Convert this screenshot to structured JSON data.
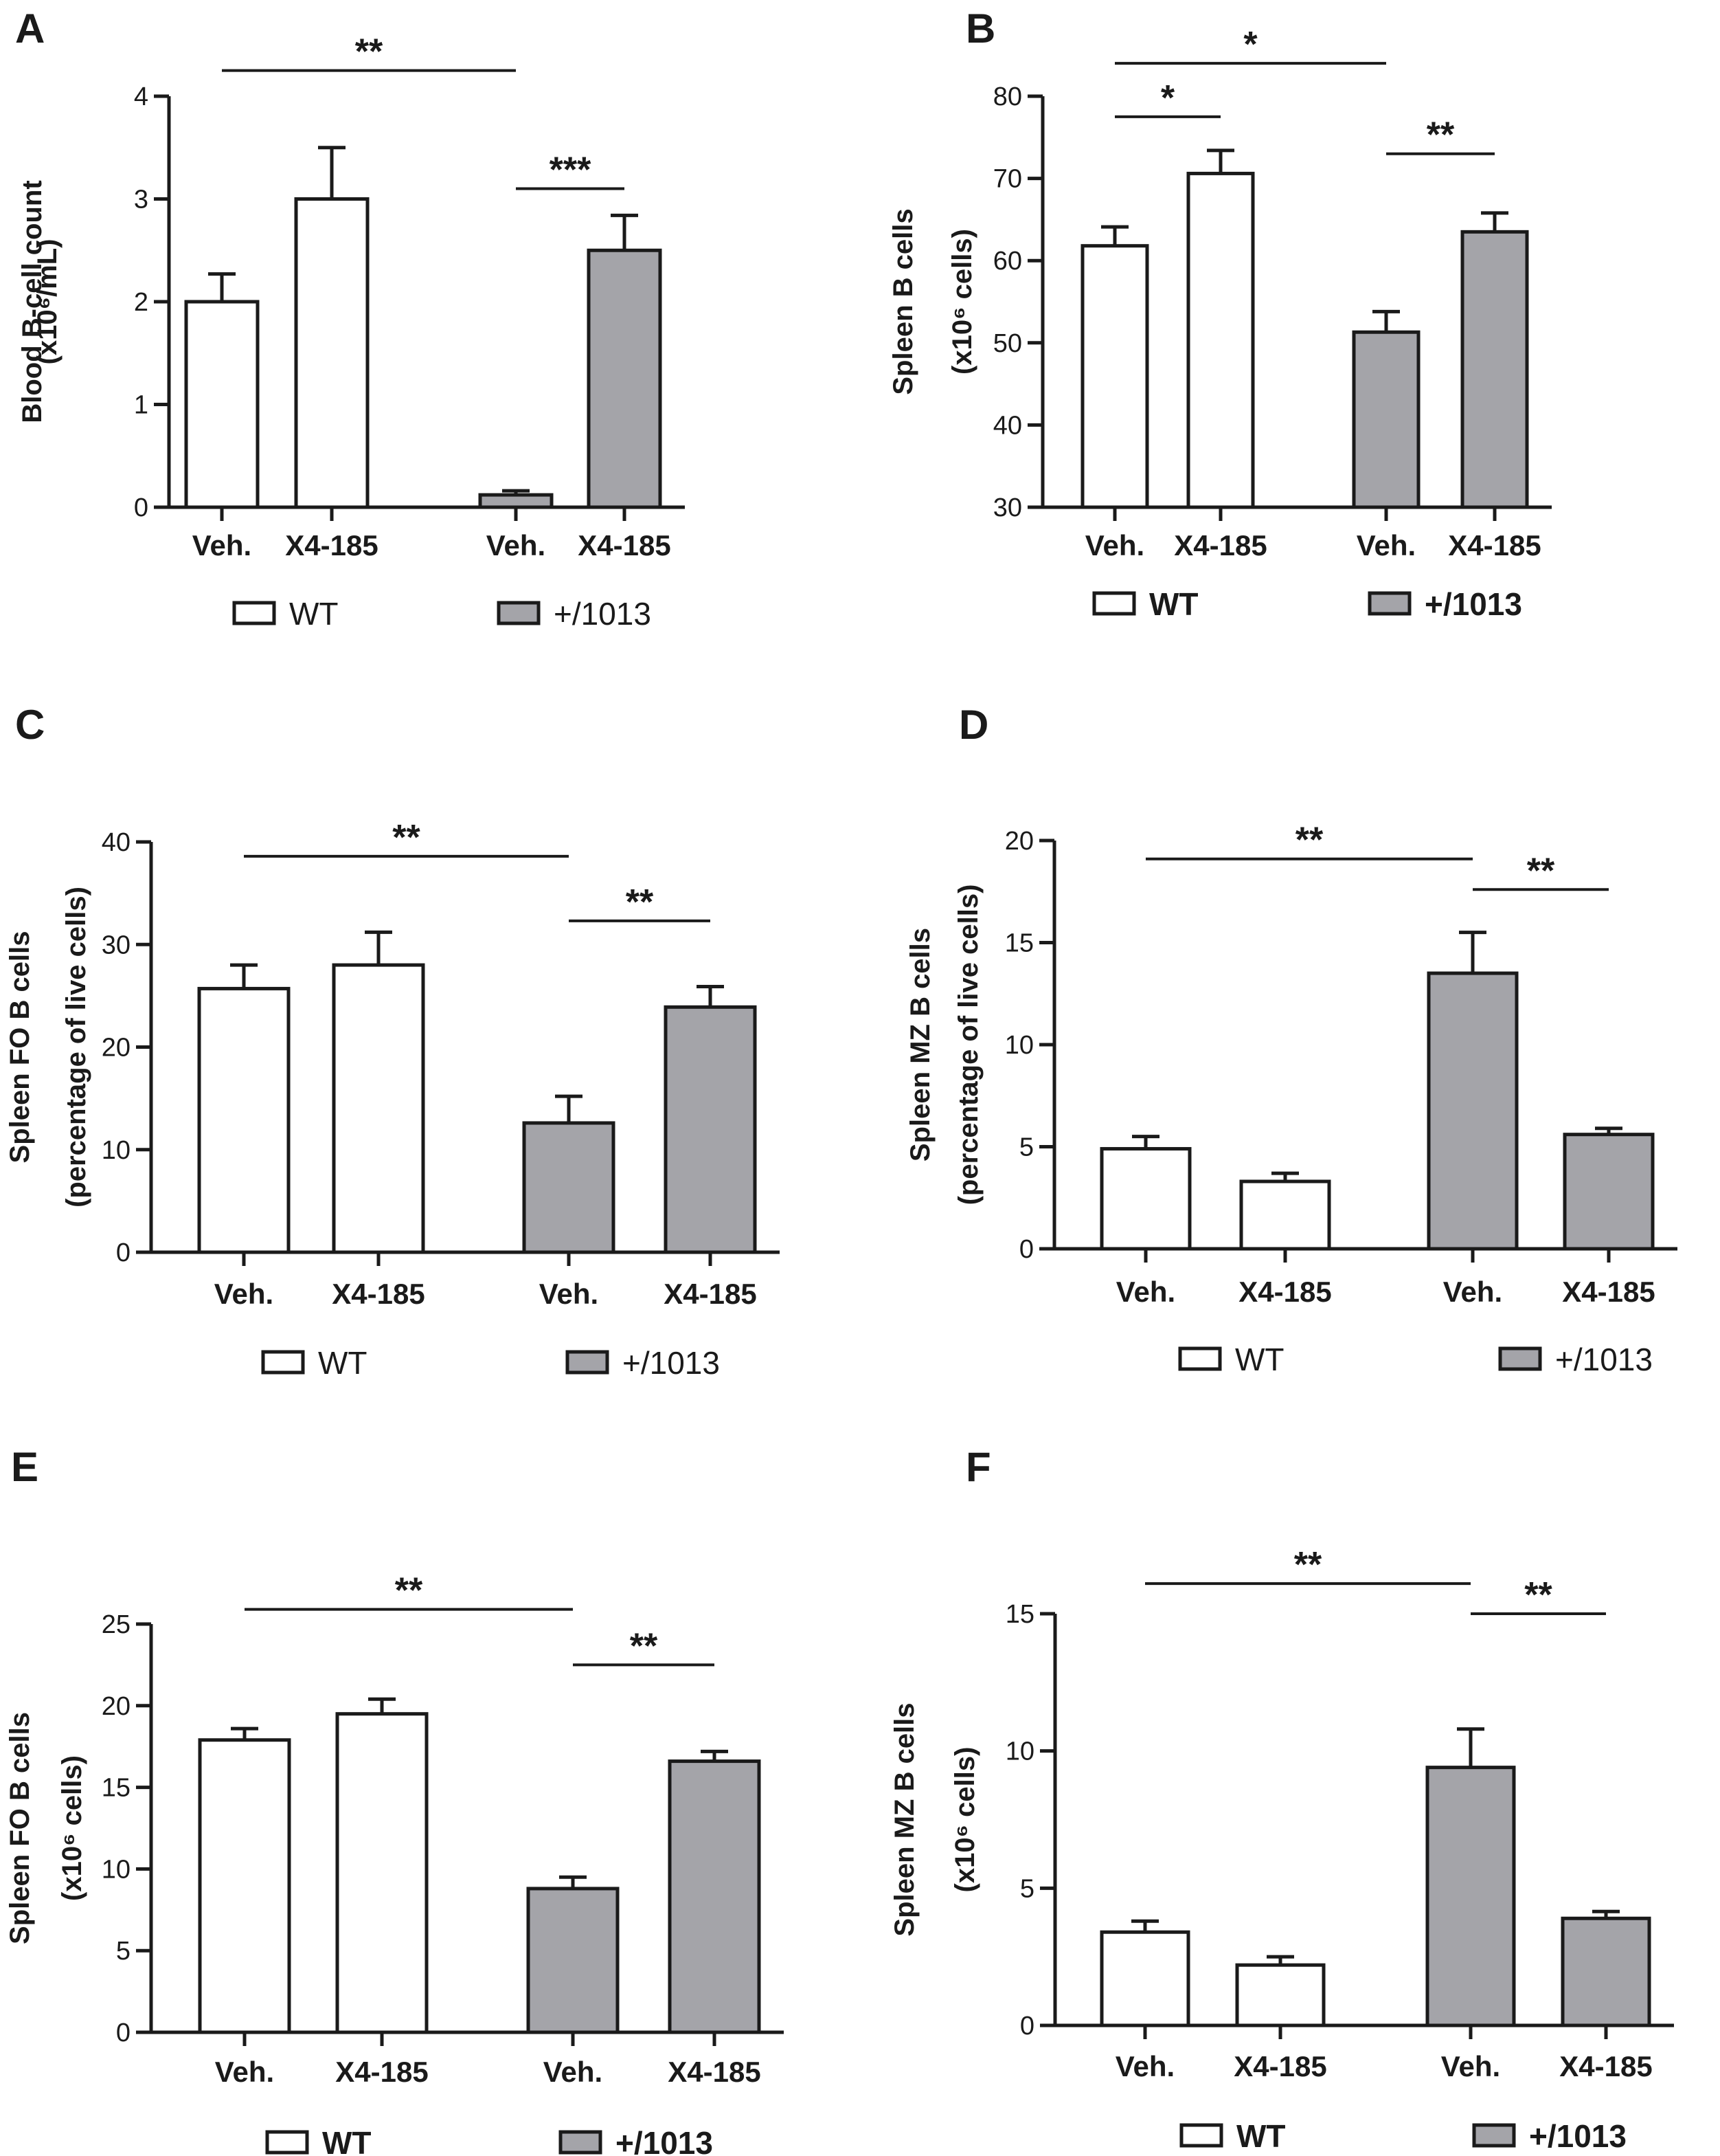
{
  "colors": {
    "wt": "#ffffff",
    "mut": "#a4a4a9",
    "stroke": "#1a1a1a"
  },
  "chart_data": [
    {
      "type": "bar",
      "panel": "A",
      "ylabel_lines": [
        "Blood B-cell count",
        "(x10⁶/mL)"
      ],
      "ylim": [
        0,
        4
      ],
      "yticks": [
        0,
        1,
        2,
        3,
        4
      ],
      "categories": [
        "Veh.",
        "X4-185",
        "Veh.",
        "X4-185"
      ],
      "groups": [
        "WT",
        "WT",
        "+/1013",
        "+/1013"
      ],
      "values": [
        2.0,
        3.0,
        0.12,
        2.5
      ],
      "errors": [
        0.27,
        0.5,
        0.04,
        0.34
      ],
      "legend": [
        "WT",
        "+/1013"
      ],
      "legend_bold": false,
      "significance": [
        {
          "from": 0,
          "to": 2,
          "y": 4.25,
          "label": "**"
        },
        {
          "from": 2,
          "to": 3,
          "y": 3.1,
          "label": "***"
        }
      ]
    },
    {
      "type": "bar",
      "panel": "B",
      "ylabel_lines": [
        "Spleen B cells",
        "(x10⁶ cells)"
      ],
      "ylim": [
        30,
        80
      ],
      "yticks": [
        30,
        40,
        50,
        60,
        70,
        80
      ],
      "categories": [
        "Veh.",
        "X4-185",
        "Veh.",
        "X4-185"
      ],
      "groups": [
        "WT",
        "WT",
        "+/1013",
        "+/1013"
      ],
      "values": [
        61.8,
        70.6,
        51.3,
        63.5
      ],
      "errors": [
        2.3,
        2.8,
        2.5,
        2.3
      ],
      "legend": [
        "WT",
        "+/1013"
      ],
      "legend_bold": true,
      "significance": [
        {
          "from": 0,
          "to": 2,
          "y": 84,
          "label": "*"
        },
        {
          "from": 0,
          "to": 1,
          "y": 77.5,
          "label": "*"
        },
        {
          "from": 2,
          "to": 3,
          "y": 73,
          "label": "**"
        }
      ]
    },
    {
      "type": "bar",
      "panel": "C",
      "ylabel_lines": [
        "Spleen FO B cells",
        "(percentage of live cells)"
      ],
      "ylim": [
        0,
        40
      ],
      "yticks": [
        0,
        10,
        20,
        30,
        40
      ],
      "categories": [
        "Veh.",
        "X4-185",
        "Veh.",
        "X4-185"
      ],
      "groups": [
        "WT",
        "WT",
        "+/1013",
        "+/1013"
      ],
      "values": [
        25.7,
        28.0,
        12.6,
        23.9
      ],
      "errors": [
        2.3,
        3.2,
        2.6,
        2.0
      ],
      "legend": [
        "WT",
        "+/1013"
      ],
      "legend_bold": false,
      "significance": [
        {
          "from": 0,
          "to": 2,
          "y": 38.6,
          "label": "**"
        },
        {
          "from": 2,
          "to": 3,
          "y": 32.3,
          "label": "**"
        }
      ]
    },
    {
      "type": "bar",
      "panel": "D",
      "ylabel_lines": [
        "Spleen MZ B cells",
        "(percentage of live cells)"
      ],
      "ylim": [
        0,
        20
      ],
      "yticks": [
        0,
        5,
        10,
        15,
        20
      ],
      "categories": [
        "Veh.",
        "X4-185",
        "Veh.",
        "X4-185"
      ],
      "groups": [
        "WT",
        "WT",
        "+/1013",
        "+/1013"
      ],
      "values": [
        4.9,
        3.3,
        13.5,
        5.6
      ],
      "errors": [
        0.6,
        0.4,
        2.0,
        0.3
      ],
      "legend": [
        "WT",
        "+/1013"
      ],
      "legend_bold": false,
      "significance": [
        {
          "from": 0,
          "to": 2,
          "y": 19.1,
          "label": "**"
        },
        {
          "from": 2,
          "to": 3,
          "y": 17.6,
          "label": "**"
        }
      ]
    },
    {
      "type": "bar",
      "panel": "E",
      "ylabel_lines": [
        "Spleen FO B cells",
        "(x10⁶ cells)"
      ],
      "ylim": [
        0,
        25
      ],
      "yticks": [
        0,
        5,
        10,
        15,
        20,
        25
      ],
      "categories": [
        "Veh.",
        "X4-185",
        "Veh.",
        "X4-185"
      ],
      "groups": [
        "WT",
        "WT",
        "+/1013",
        "+/1013"
      ],
      "values": [
        17.9,
        19.5,
        8.8,
        16.6
      ],
      "errors": [
        0.7,
        0.9,
        0.7,
        0.6
      ],
      "legend": [
        "WT",
        "+/1013"
      ],
      "legend_bold": true,
      "significance": [
        {
          "from": 0,
          "to": 2,
          "y": 25.9,
          "label": "**"
        },
        {
          "from": 2,
          "to": 3,
          "y": 22.5,
          "label": "**"
        }
      ]
    },
    {
      "type": "bar",
      "panel": "F",
      "ylabel_lines": [
        "Spleen MZ B cells",
        "(x10⁶ cells)"
      ],
      "ylim": [
        0,
        15
      ],
      "yticks": [
        0,
        5,
        10,
        15
      ],
      "categories": [
        "Veh.",
        "X4-185",
        "Veh.",
        "X4-185"
      ],
      "groups": [
        "WT",
        "WT",
        "+/1013",
        "+/1013"
      ],
      "values": [
        3.4,
        2.2,
        9.4,
        3.9
      ],
      "errors": [
        0.4,
        0.3,
        1.4,
        0.25
      ],
      "legend": [
        "WT",
        "+/1013"
      ],
      "legend_bold": true,
      "significance": [
        {
          "from": 0,
          "to": 2,
          "y": 16.1,
          "label": "**"
        },
        {
          "from": 2,
          "to": 3,
          "y": 15.0,
          "label": "**"
        }
      ]
    }
  ]
}
